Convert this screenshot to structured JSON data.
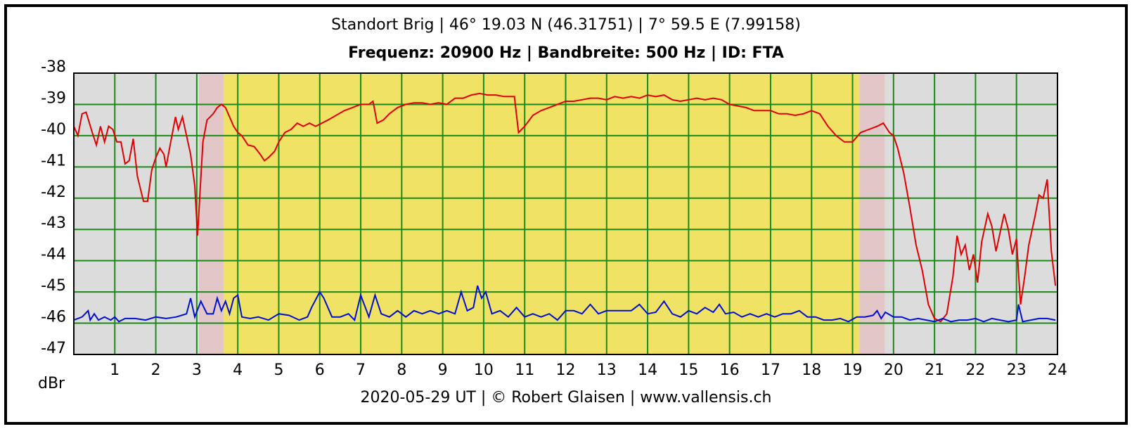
{
  "chart_data": {
    "type": "line",
    "title": "Standort Brig | 46° 19.03 N (46.31751) | 7° 59.5 E (7.99158)",
    "subtitle": "Frequenz: 20900 Hz | Bandbreite: 500 Hz | ID: FTA",
    "y_label": "dBr",
    "footer": "2020-05-29 UT | © Robert Glaisen | www.vallensis.ch",
    "xlim": [
      0,
      24
    ],
    "xticks": [
      1,
      2,
      3,
      4,
      5,
      6,
      7,
      8,
      9,
      10,
      11,
      12,
      13,
      14,
      15,
      16,
      17,
      18,
      19,
      20,
      21,
      22,
      23,
      24
    ],
    "ylim": [
      -47,
      -38
    ],
    "yticks": [
      -47,
      -46,
      -45,
      -44,
      -43,
      -42,
      -41,
      -40,
      -39,
      -38
    ],
    "grid": true,
    "grid_color": "#1a8a1a",
    "bands": [
      {
        "start": 0,
        "end": 3.05,
        "color": "#dcdcdc"
      },
      {
        "start": 3.05,
        "end": 3.66,
        "color": "#e2c6c8"
      },
      {
        "start": 3.66,
        "end": 19.17,
        "color": "#f0e264"
      },
      {
        "start": 19.17,
        "end": 19.79,
        "color": "#e2c6c8"
      },
      {
        "start": 19.79,
        "end": 24,
        "color": "#dcdcdc"
      }
    ],
    "series": [
      {
        "color": "#e00000",
        "x": [
          0,
          0.1,
          0.2,
          0.3,
          0.45,
          0.55,
          0.65,
          0.75,
          0.85,
          0.95,
          1.05,
          1.15,
          1.25,
          1.35,
          1.45,
          1.55,
          1.7,
          1.8,
          1.9,
          2.0,
          2.1,
          2.2,
          2.25,
          2.35,
          2.48,
          2.55,
          2.65,
          2.75,
          2.85,
          2.95,
          3.02,
          3.08,
          3.15,
          3.25,
          3.4,
          3.5,
          3.6,
          3.7,
          3.8,
          3.9,
          4.0,
          4.1,
          4.25,
          4.4,
          4.55,
          4.65,
          4.75,
          4.9,
          5.0,
          5.15,
          5.3,
          5.45,
          5.6,
          5.75,
          5.9,
          6.05,
          6.2,
          6.4,
          6.6,
          6.8,
          7.0,
          7.2,
          7.3,
          7.4,
          7.55,
          7.7,
          7.9,
          8.1,
          8.3,
          8.5,
          8.7,
          8.9,
          9.1,
          9.3,
          9.5,
          9.7,
          9.9,
          10.1,
          10.3,
          10.5,
          10.75,
          10.85,
          11.0,
          11.2,
          11.4,
          11.6,
          11.8,
          12.0,
          12.2,
          12.4,
          12.6,
          12.8,
          13.0,
          13.2,
          13.4,
          13.6,
          13.8,
          14.0,
          14.2,
          14.4,
          14.6,
          14.8,
          15.0,
          15.2,
          15.4,
          15.6,
          15.8,
          16.0,
          16.2,
          16.4,
          16.6,
          16.8,
          17.0,
          17.2,
          17.4,
          17.6,
          17.8,
          18.0,
          18.2,
          18.4,
          18.6,
          18.8,
          19.0,
          19.2,
          19.4,
          19.6,
          19.75,
          19.9,
          20.0,
          20.1,
          20.25,
          20.4,
          20.55,
          20.7,
          20.85,
          21.0,
          21.15,
          21.3,
          21.45,
          21.55,
          21.65,
          21.75,
          21.85,
          21.95,
          22.05,
          22.15,
          22.3,
          22.4,
          22.5,
          22.6,
          22.7,
          22.8,
          22.9,
          23.0,
          23.05,
          23.1,
          23.2,
          23.3,
          23.45,
          23.55,
          23.65,
          23.75,
          23.85,
          23.95
        ],
        "values": [
          -39.7,
          -40.0,
          -39.3,
          -39.25,
          -39.9,
          -40.3,
          -39.7,
          -40.2,
          -39.7,
          -39.8,
          -40.2,
          -40.2,
          -40.9,
          -40.8,
          -40.1,
          -41.3,
          -42.1,
          -42.1,
          -41.1,
          -40.7,
          -40.4,
          -40.6,
          -41.0,
          -40.3,
          -39.4,
          -39.8,
          -39.4,
          -40.0,
          -40.6,
          -41.6,
          -43.2,
          -41.8,
          -40.2,
          -39.5,
          -39.3,
          -39.1,
          -39.0,
          -39.1,
          -39.4,
          -39.7,
          -39.9,
          -40.0,
          -40.3,
          -40.35,
          -40.6,
          -40.8,
          -40.7,
          -40.5,
          -40.2,
          -39.9,
          -39.8,
          -39.6,
          -39.7,
          -39.6,
          -39.7,
          -39.6,
          -39.5,
          -39.35,
          -39.2,
          -39.1,
          -39.0,
          -39.0,
          -38.9,
          -39.6,
          -39.5,
          -39.3,
          -39.1,
          -39.0,
          -38.95,
          -38.95,
          -39.0,
          -38.95,
          -39.0,
          -38.8,
          -38.8,
          -38.7,
          -38.65,
          -38.7,
          -38.7,
          -38.75,
          -38.75,
          -39.9,
          -39.7,
          -39.35,
          -39.2,
          -39.1,
          -39.0,
          -38.9,
          -38.9,
          -38.85,
          -38.8,
          -38.8,
          -38.85,
          -38.75,
          -38.8,
          -38.75,
          -38.8,
          -38.7,
          -38.75,
          -38.7,
          -38.85,
          -38.9,
          -38.85,
          -38.8,
          -38.85,
          -38.8,
          -38.85,
          -39.0,
          -39.05,
          -39.1,
          -39.2,
          -39.2,
          -39.2,
          -39.3,
          -39.3,
          -39.35,
          -39.3,
          -39.2,
          -39.3,
          -39.7,
          -40.0,
          -40.2,
          -40.2,
          -39.9,
          -39.8,
          -39.7,
          -39.6,
          -39.9,
          -40.0,
          -40.4,
          -41.2,
          -42.3,
          -43.5,
          -44.3,
          -45.4,
          -45.85,
          -45.95,
          -45.7,
          -44.5,
          -43.2,
          -43.8,
          -43.5,
          -44.3,
          -43.8,
          -44.7,
          -43.4,
          -42.5,
          -42.9,
          -43.7,
          -43.1,
          -42.5,
          -43.0,
          -43.8,
          -43.3,
          -44.4,
          -45.4,
          -44.5,
          -43.5,
          -42.6,
          -41.9,
          -42.0,
          -41.4,
          -43.7,
          -44.8
        ]
      },
      {
        "color": "#0010d0",
        "x": [
          0,
          0.2,
          0.35,
          0.4,
          0.5,
          0.6,
          0.75,
          0.9,
          1.0,
          1.1,
          1.25,
          1.5,
          1.75,
          2.0,
          2.25,
          2.5,
          2.75,
          2.85,
          2.95,
          3.1,
          3.25,
          3.4,
          3.5,
          3.6,
          3.7,
          3.8,
          3.9,
          4.0,
          4.1,
          4.3,
          4.5,
          4.75,
          5.0,
          5.25,
          5.5,
          5.7,
          5.8,
          6.0,
          6.1,
          6.3,
          6.5,
          6.7,
          6.85,
          7.0,
          7.2,
          7.35,
          7.5,
          7.7,
          7.9,
          8.1,
          8.3,
          8.5,
          8.7,
          8.9,
          9.1,
          9.3,
          9.45,
          9.6,
          9.75,
          9.85,
          9.95,
          10.05,
          10.2,
          10.4,
          10.6,
          10.8,
          11.0,
          11.2,
          11.4,
          11.6,
          11.8,
          12.0,
          12.2,
          12.4,
          12.6,
          12.8,
          13.0,
          13.2,
          13.4,
          13.6,
          13.8,
          14.0,
          14.2,
          14.4,
          14.6,
          14.8,
          15.0,
          15.2,
          15.4,
          15.6,
          15.75,
          15.9,
          16.1,
          16.3,
          16.5,
          16.7,
          16.9,
          17.1,
          17.3,
          17.5,
          17.7,
          17.9,
          18.1,
          18.3,
          18.5,
          18.7,
          18.9,
          19.1,
          19.3,
          19.5,
          19.6,
          19.7,
          19.8,
          20.0,
          20.2,
          20.4,
          20.6,
          20.8,
          21.0,
          21.2,
          21.4,
          21.6,
          21.8,
          22.0,
          22.2,
          22.4,
          22.6,
          22.8,
          23.0,
          23.05,
          23.15,
          23.35,
          23.55,
          23.75,
          23.95
        ],
        "values": [
          -45.9,
          -45.8,
          -45.6,
          -45.9,
          -45.7,
          -45.9,
          -45.8,
          -45.9,
          -45.8,
          -45.95,
          -45.85,
          -45.85,
          -45.9,
          -45.8,
          -45.85,
          -45.8,
          -45.7,
          -45.2,
          -45.8,
          -45.3,
          -45.7,
          -45.7,
          -45.2,
          -45.6,
          -45.3,
          -45.7,
          -45.2,
          -45.1,
          -45.8,
          -45.85,
          -45.8,
          -45.9,
          -45.7,
          -45.75,
          -45.9,
          -45.8,
          -45.5,
          -45.0,
          -45.2,
          -45.8,
          -45.8,
          -45.7,
          -45.9,
          -45.1,
          -45.8,
          -45.1,
          -45.7,
          -45.8,
          -45.6,
          -45.8,
          -45.6,
          -45.7,
          -45.6,
          -45.7,
          -45.6,
          -45.7,
          -45.0,
          -45.6,
          -45.5,
          -44.8,
          -45.2,
          -45.0,
          -45.7,
          -45.6,
          -45.8,
          -45.5,
          -45.8,
          -45.7,
          -45.8,
          -45.7,
          -45.9,
          -45.6,
          -45.6,
          -45.7,
          -45.4,
          -45.7,
          -45.6,
          -45.6,
          -45.6,
          -45.6,
          -45.4,
          -45.7,
          -45.65,
          -45.3,
          -45.7,
          -45.8,
          -45.6,
          -45.7,
          -45.5,
          -45.65,
          -45.4,
          -45.7,
          -45.65,
          -45.8,
          -45.7,
          -45.8,
          -45.7,
          -45.8,
          -45.7,
          -45.7,
          -45.6,
          -45.8,
          -45.8,
          -45.9,
          -45.9,
          -45.85,
          -45.95,
          -45.8,
          -45.8,
          -45.75,
          -45.6,
          -45.85,
          -45.65,
          -45.8,
          -45.8,
          -45.9,
          -45.85,
          -45.9,
          -45.95,
          -45.85,
          -45.95,
          -45.9,
          -45.9,
          -45.85,
          -45.95,
          -45.85,
          -45.9,
          -45.95,
          -45.9,
          -45.4,
          -45.95,
          -45.9,
          -45.85,
          -45.85,
          -45.9
        ]
      }
    ]
  }
}
